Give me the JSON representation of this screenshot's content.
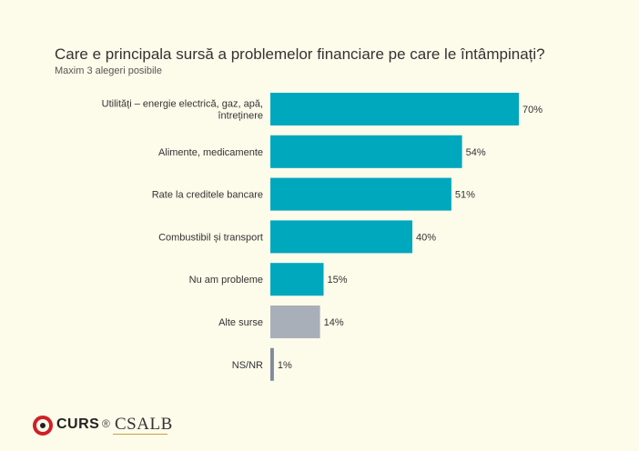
{
  "chart_data": {
    "type": "bar",
    "orientation": "horizontal",
    "title": "Care e principala sursă a problemelor financiare pe care le întâmpinați?",
    "subtitle": "Maxim 3 alegeri posibile",
    "categories": [
      [
        "Utilități – energie electrică, gaz, apă,",
        "întreținere"
      ],
      [
        "Alimente, medicamente"
      ],
      [
        "Rate la creditele bancare"
      ],
      [
        "Combustibil și transport"
      ],
      [
        "Nu am probleme"
      ],
      [
        "Alte surse"
      ],
      [
        "NS/NR"
      ]
    ],
    "values": [
      70,
      54,
      51,
      40,
      15,
      14,
      1
    ],
    "value_labels": [
      "70%",
      "54%",
      "51%",
      "40%",
      "15%",
      "14%",
      "1%"
    ],
    "colors": [
      "#00a8bd",
      "#00a8bd",
      "#00a8bd",
      "#00a8bd",
      "#00a8bd",
      "#a9afb8",
      "#7f8b9c"
    ],
    "xlim": [
      0,
      100
    ],
    "grid": false,
    "legend": "none"
  },
  "logos": {
    "curs": "CURS",
    "registered": "®",
    "csalb": "CSALB"
  }
}
